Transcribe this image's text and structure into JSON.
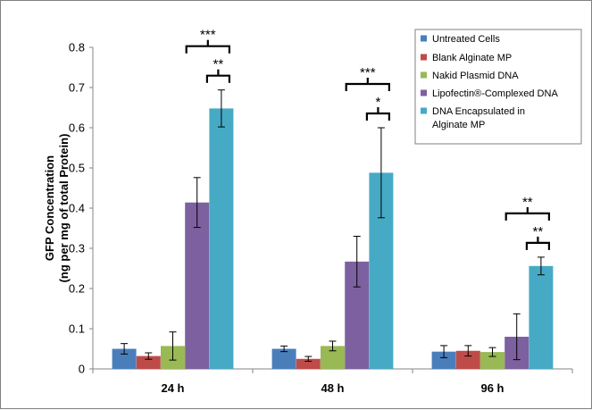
{
  "chart_data": {
    "type": "bar",
    "categories": [
      "24 h",
      "48 h",
      "96 h"
    ],
    "ylabel_lines": [
      "GFP Concentration",
      "(ng per mg of total Protein)"
    ],
    "ylim": [
      0,
      0.8
    ],
    "yticks": [
      "0",
      "0.1",
      "0.2",
      "0.3",
      "0.4",
      "0.5",
      "0.6",
      "0.7",
      "0.8"
    ],
    "grid": false,
    "legend_position": "top-right",
    "series": [
      {
        "name": "Untreated Cells",
        "color": "#4a7ebb",
        "values": [
          0.05,
          0.05,
          0.043
        ],
        "errors": [
          0.013,
          0.007,
          0.015
        ]
      },
      {
        "name": "Blank Alginate MP",
        "color": "#be4b48",
        "values": [
          0.032,
          0.025,
          0.045
        ],
        "errors": [
          0.008,
          0.006,
          0.013
        ]
      },
      {
        "name": "Nakid Plasmid DNA",
        "color": "#98b954",
        "values": [
          0.057,
          0.057,
          0.042
        ],
        "errors": [
          0.035,
          0.012,
          0.011
        ]
      },
      {
        "name": "Lipofectin®-Complexed DNA",
        "color": "#7d60a0",
        "values": [
          0.414,
          0.267,
          0.08
        ],
        "errors": [
          0.062,
          0.063,
          0.057
        ]
      },
      {
        "name": "DNA Encapsulated in Alginate MP",
        "legend_lines": [
          "DNA Encapsulated in",
          "Alginate MP"
        ],
        "color": "#46aac5",
        "values": [
          0.648,
          0.488,
          0.256
        ],
        "errors": [
          0.046,
          0.112,
          0.022
        ]
      }
    ],
    "annotations": [
      {
        "category": "24 h",
        "label": "***",
        "from_series": 3,
        "to_series": 4
      },
      {
        "category": "24 h",
        "label": "**",
        "from_series": 3,
        "to_series": 4,
        "inner": true
      },
      {
        "category": "48 h",
        "label": "***",
        "from_series": 3,
        "to_series": 4
      },
      {
        "category": "48 h",
        "label": "*",
        "from_series": 3,
        "to_series": 4,
        "inner": true
      },
      {
        "category": "96 h",
        "label": "**",
        "from_series": 3,
        "to_series": 4
      },
      {
        "category": "96 h",
        "label": "**",
        "from_series": 3,
        "to_series": 4,
        "inner": true
      }
    ]
  }
}
